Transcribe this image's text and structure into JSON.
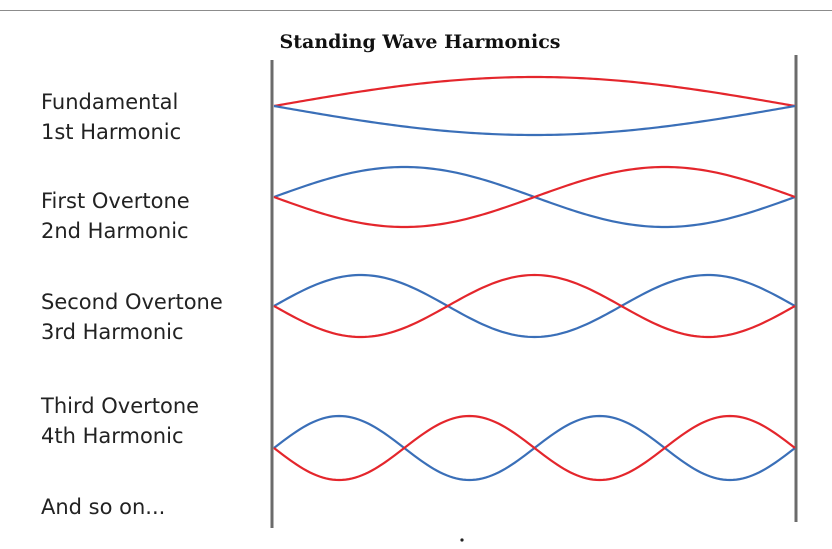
{
  "title": "Standing Wave Harmonics",
  "colors": {
    "wave_a": "#e4262c",
    "wave_b": "#3a6fb8",
    "boundary": "#6b6b6b"
  },
  "harmonics": [
    {
      "line1": "Fundamental",
      "line2": "1st Harmonic",
      "n": 1
    },
    {
      "line1": "First Overtone",
      "line2": "2nd Harmonic",
      "n": 2
    },
    {
      "line1": "Second Overtone",
      "line2": "3rd Harmonic",
      "n": 3
    },
    {
      "line1": "Third Overtone",
      "line2": "4th Harmonic",
      "n": 4
    }
  ],
  "footer_label": "And so on..."
}
